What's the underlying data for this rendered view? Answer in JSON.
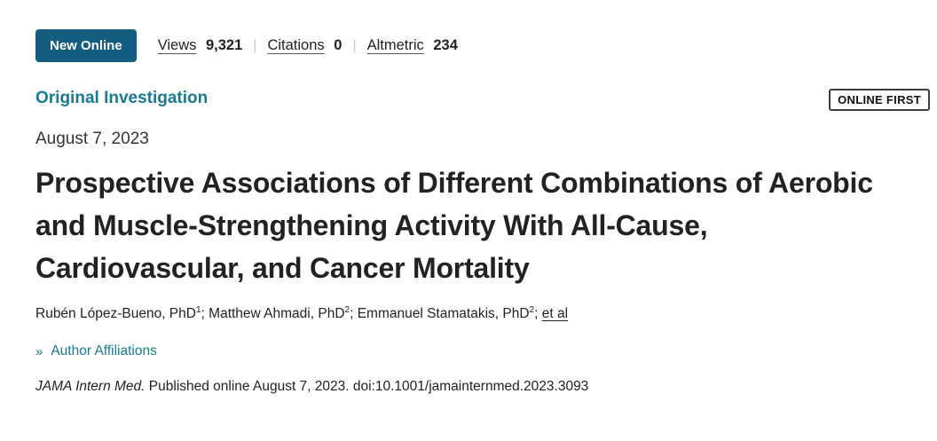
{
  "colors": {
    "badge_bg": "#135e80",
    "accent": "#177b96"
  },
  "ui": {
    "divider": "|"
  },
  "badge": {
    "label": "New Online"
  },
  "metrics": [
    {
      "label": "Views",
      "value": "9,321"
    },
    {
      "label": "Citations",
      "value": "0"
    },
    {
      "label": "Altmetric",
      "value": "234"
    }
  ],
  "article": {
    "category": "Original Investigation",
    "online_first_label": "ONLINE FIRST",
    "date": "August 7, 2023",
    "title": "Prospective Associations of Different Combinations of Aerobic and Muscle-Strengthening Activity With All-Cause, Cardiovascular, and Cancer Mortality",
    "authors": [
      {
        "name": "Rubén López-Bueno, PhD",
        "sup": "1"
      },
      {
        "name": "Matthew Ahmadi, PhD",
        "sup": "2"
      },
      {
        "name": "Emmanuel Stamatakis, PhD",
        "sup": "2"
      }
    ],
    "author_separator": "; ",
    "et_al": "et al",
    "affiliations_chevron": "»",
    "affiliations_label": "Author Affiliations",
    "citation": {
      "journal": "JAMA Intern Med.",
      "text": " Published online August 7, 2023. doi:10.1001/jamainternmed.2023.3093"
    }
  }
}
